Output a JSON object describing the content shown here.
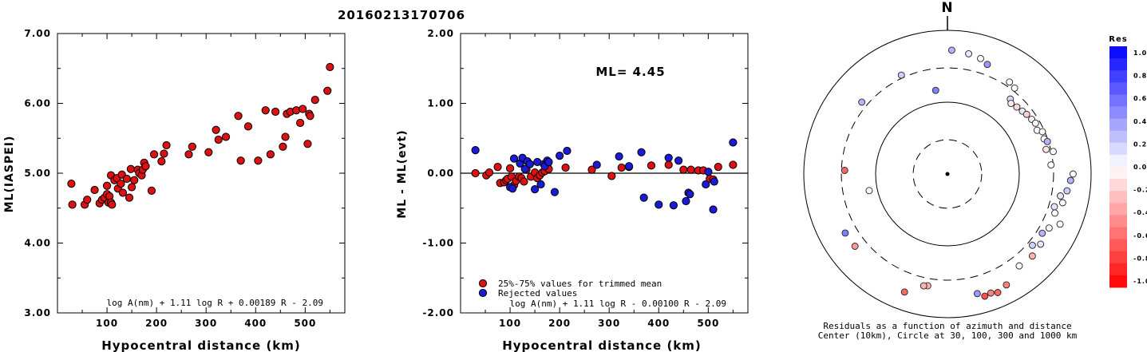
{
  "title": "20160213170706",
  "north_label": "N",
  "colors": {
    "red_point": "#dd1111",
    "blue_point": "#1a1ad8",
    "axis": "#000000"
  },
  "chart_data": [
    {
      "type": "scatter",
      "xlabel": "Hypocentral distance (km)",
      "ylabel": "ML(IASPEI)",
      "xlim": [
        0,
        580
      ],
      "ylim": [
        3.0,
        7.0
      ],
      "xticks": [
        100,
        200,
        300,
        400,
        500
      ],
      "yticks": [
        "3.00",
        "4.00",
        "5.00",
        "6.00",
        "7.00"
      ],
      "formula": "log A(nm) + 1.11 log R + 0.00189 R - 2.09",
      "series": [
        {
          "points": [
            [
              28,
              4.85
            ],
            [
              30,
              4.55
            ],
            [
              55,
              4.55
            ],
            [
              60,
              4.62
            ],
            [
              75,
              4.76
            ],
            [
              85,
              4.57
            ],
            [
              90,
              4.62
            ],
            [
              95,
              4.65
            ],
            [
              100,
              4.82
            ],
            [
              100,
              4.7
            ],
            [
              103,
              4.58
            ],
            [
              105,
              4.67
            ],
            [
              108,
              4.58
            ],
            [
              110,
              4.55
            ],
            [
              108,
              4.97
            ],
            [
              115,
              4.9
            ],
            [
              120,
              4.93
            ],
            [
              122,
              4.78
            ],
            [
              128,
              4.85
            ],
            [
              130,
              4.98
            ],
            [
              132,
              4.72
            ],
            [
              140,
              4.92
            ],
            [
              145,
              4.65
            ],
            [
              148,
              5.06
            ],
            [
              150,
              4.8
            ],
            [
              155,
              4.9
            ],
            [
              162,
              5.05
            ],
            [
              165,
              5.0
            ],
            [
              170,
              4.97
            ],
            [
              172,
              5.05
            ],
            [
              175,
              5.15
            ],
            [
              178,
              5.1
            ],
            [
              190,
              4.75
            ],
            [
              195,
              5.27
            ],
            [
              210,
              5.17
            ],
            [
              215,
              5.28
            ],
            [
              220,
              5.4
            ],
            [
              265,
              5.27
            ],
            [
              272,
              5.38
            ],
            [
              305,
              5.3
            ],
            [
              320,
              5.62
            ],
            [
              325,
              5.48
            ],
            [
              340,
              5.52
            ],
            [
              365,
              5.82
            ],
            [
              370,
              5.18
            ],
            [
              385,
              5.67
            ],
            [
              405,
              5.18
            ],
            [
              420,
              5.9
            ],
            [
              430,
              5.27
            ],
            [
              440,
              5.88
            ],
            [
              455,
              5.38
            ],
            [
              460,
              5.52
            ],
            [
              463,
              5.85
            ],
            [
              470,
              5.88
            ],
            [
              482,
              5.9
            ],
            [
              490,
              5.72
            ],
            [
              495,
              5.92
            ],
            [
              505,
              5.42
            ],
            [
              508,
              5.85
            ],
            [
              510,
              5.82
            ],
            [
              520,
              6.05
            ],
            [
              545,
              6.18
            ],
            [
              550,
              6.52
            ]
          ]
        }
      ]
    },
    {
      "type": "scatter",
      "xlabel": "Hypocentral distance (km)",
      "ylabel": "ML - ML(evt)",
      "xlim": [
        0,
        580
      ],
      "ylim": [
        -2.0,
        2.0
      ],
      "xticks": [
        100,
        200,
        300,
        400,
        500
      ],
      "yticks": [
        "-2.00",
        "-1.00",
        "0.00",
        "1.00",
        "2.00"
      ],
      "annotation": "ML= 4.45",
      "formula": "log A(nm) + 1.11 log R - 0.00100 R - 2.09",
      "legend": [
        "25%-75% values for trimmed mean",
        "Rejected values"
      ],
      "series": [
        {
          "color": "red",
          "points": [
            [
              30,
              0.0
            ],
            [
              52,
              -0.03
            ],
            [
              58,
              0.01
            ],
            [
              75,
              0.09
            ],
            [
              80,
              -0.14
            ],
            [
              88,
              -0.13
            ],
            [
              92,
              -0.1
            ],
            [
              95,
              -0.08
            ],
            [
              100,
              0.07
            ],
            [
              103,
              -0.05
            ],
            [
              108,
              -0.17
            ],
            [
              112,
              -0.11
            ],
            [
              118,
              -0.05
            ],
            [
              123,
              -0.07
            ],
            [
              128,
              -0.12
            ],
            [
              133,
              0.05
            ],
            [
              142,
              -0.05
            ],
            [
              150,
              0.01
            ],
            [
              155,
              -0.07
            ],
            [
              160,
              -0.03
            ],
            [
              165,
              0.01
            ],
            [
              170,
              0.03
            ],
            [
              175,
              0.11
            ],
            [
              178,
              0.06
            ],
            [
              212,
              0.08
            ],
            [
              265,
              0.05
            ],
            [
              305,
              -0.04
            ],
            [
              325,
              0.08
            ],
            [
              340,
              0.09
            ],
            [
              385,
              0.11
            ],
            [
              420,
              0.12
            ],
            [
              450,
              0.05
            ],
            [
              465,
              0.05
            ],
            [
              480,
              0.04
            ],
            [
              490,
              0.04
            ],
            [
              503,
              -0.08
            ],
            [
              510,
              -0.09
            ],
            [
              520,
              0.09
            ],
            [
              550,
              0.12
            ]
          ]
        },
        {
          "color": "blue",
          "points": [
            [
              30,
              0.33
            ],
            [
              100,
              -0.2
            ],
            [
              105,
              -0.22
            ],
            [
              108,
              0.21
            ],
            [
              120,
              0.14
            ],
            [
              125,
              0.22
            ],
            [
              130,
              0.06
            ],
            [
              135,
              0.17
            ],
            [
              140,
              0.13
            ],
            [
              150,
              -0.23
            ],
            [
              155,
              0.16
            ],
            [
              162,
              -0.16
            ],
            [
              168,
              0.13
            ],
            [
              170,
              0.1
            ],
            [
              175,
              0.18
            ],
            [
              178,
              0.16
            ],
            [
              190,
              -0.27
            ],
            [
              200,
              0.25
            ],
            [
              215,
              0.32
            ],
            [
              275,
              0.12
            ],
            [
              320,
              0.24
            ],
            [
              340,
              0.1
            ],
            [
              365,
              0.3
            ],
            [
              370,
              -0.35
            ],
            [
              400,
              -0.45
            ],
            [
              420,
              0.22
            ],
            [
              430,
              -0.46
            ],
            [
              440,
              0.18
            ],
            [
              455,
              -0.4
            ],
            [
              460,
              -0.28
            ],
            [
              463,
              -0.3
            ],
            [
              495,
              -0.16
            ],
            [
              500,
              0.02
            ],
            [
              510,
              -0.52
            ],
            [
              512,
              -0.12
            ],
            [
              550,
              0.44
            ]
          ]
        }
      ]
    },
    {
      "type": "polar-scatter",
      "caption_line1": "Residuals as a function of azimuth and distance",
      "caption_line2": "Center (10km), Circle at 30, 100, 300 and 1000 km",
      "colorbar_title": "Res",
      "colorbar_ticks": [
        "1.0",
        "0.8",
        "0.6",
        "0.4",
        "0.2",
        "0.0",
        "-0.2",
        "-0.4",
        "-0.6",
        "-0.8",
        "-1.0"
      ],
      "rings_km": [
        30,
        100,
        300,
        1000
      ],
      "points": [
        {
          "az": 10,
          "dist": 500,
          "res": 0.1
        },
        {
          "az": 16,
          "dist": 470,
          "res": 0.0
        },
        {
          "az": 20,
          "dist": 420,
          "res": 0.4
        },
        {
          "az": 34,
          "dist": 350,
          "res": 0.0
        },
        {
          "az": 38,
          "dist": 330,
          "res": 0.0
        },
        {
          "az": 40,
          "dist": 230,
          "res": 0.15
        },
        {
          "az": 42,
          "dist": 210,
          "res": -0.1
        },
        {
          "az": 46,
          "dist": 220,
          "res": -0.15
        },
        {
          "az": 50,
          "dist": 230,
          "res": 0.1
        },
        {
          "az": 53,
          "dist": 240,
          "res": -0.2
        },
        {
          "az": 57,
          "dist": 250,
          "res": 0.05
        },
        {
          "az": 60,
          "dist": 260,
          "res": 0.0
        },
        {
          "az": 64,
          "dist": 245,
          "res": 0.0
        },
        {
          "az": 66,
          "dist": 280,
          "res": 0.0
        },
        {
          "az": 70,
          "dist": 270,
          "res": 0.0
        },
        {
          "az": 72,
          "dist": 290,
          "res": 0.3
        },
        {
          "az": 76,
          "dist": 260,
          "res": -0.1
        },
        {
          "az": 78,
          "dist": 320,
          "res": 0.0
        },
        {
          "az": 85,
          "dist": 280,
          "res": 0.0
        },
        {
          "az": 90,
          "dist": 560,
          "res": 0.0
        },
        {
          "az": 93,
          "dist": 520,
          "res": 0.3
        },
        {
          "az": 98,
          "dist": 480,
          "res": 0.2
        },
        {
          "az": 101,
          "dist": 400,
          "res": 0.1
        },
        {
          "az": 104,
          "dist": 450,
          "res": 0.0
        },
        {
          "az": 107,
          "dist": 360,
          "res": 0.1
        },
        {
          "az": 110,
          "dist": 390,
          "res": 0.0
        },
        {
          "az": 114,
          "dist": 520,
          "res": 0.0
        },
        {
          "az": 118,
          "dist": 400,
          "res": -0.05
        },
        {
          "az": 122,
          "dist": 360,
          "res": 0.3
        },
        {
          "az": 127,
          "dist": 420,
          "res": 0.1
        },
        {
          "az": 130,
          "dist": 350,
          "res": 0.2
        },
        {
          "az": 134,
          "dist": 440,
          "res": -0.3
        },
        {
          "az": 142,
          "dist": 420,
          "res": 0.0
        },
        {
          "az": 152,
          "dist": 560,
          "res": -0.5
        },
        {
          "az": 157,
          "dist": 620,
          "res": -0.6
        },
        {
          "az": 160,
          "dist": 580,
          "res": -0.5
        },
        {
          "az": 163,
          "dist": 600,
          "res": -0.7
        },
        {
          "az": 166,
          "dist": 520,
          "res": 0.4
        },
        {
          "az": 190,
          "dist": 380,
          "res": -0.3
        },
        {
          "az": 192,
          "dist": 390,
          "res": -0.3
        },
        {
          "az": 200,
          "dist": 560,
          "res": -0.6
        },
        {
          "az": 232,
          "dist": 430,
          "res": -0.4
        },
        {
          "az": 240,
          "dist": 440,
          "res": 0.5
        },
        {
          "az": 272,
          "dist": 270,
          "res": -0.6
        },
        {
          "az": 258,
          "dist": 130,
          "res": 0.0
        },
        {
          "az": 310,
          "dist": 360,
          "res": 0.3
        },
        {
          "az": 335,
          "dist": 330,
          "res": 0.2
        },
        {
          "az": 352,
          "dist": 150,
          "res": 0.5
        },
        {
          "az": 2,
          "dist": 530,
          "res": 0.3
        }
      ]
    }
  ]
}
